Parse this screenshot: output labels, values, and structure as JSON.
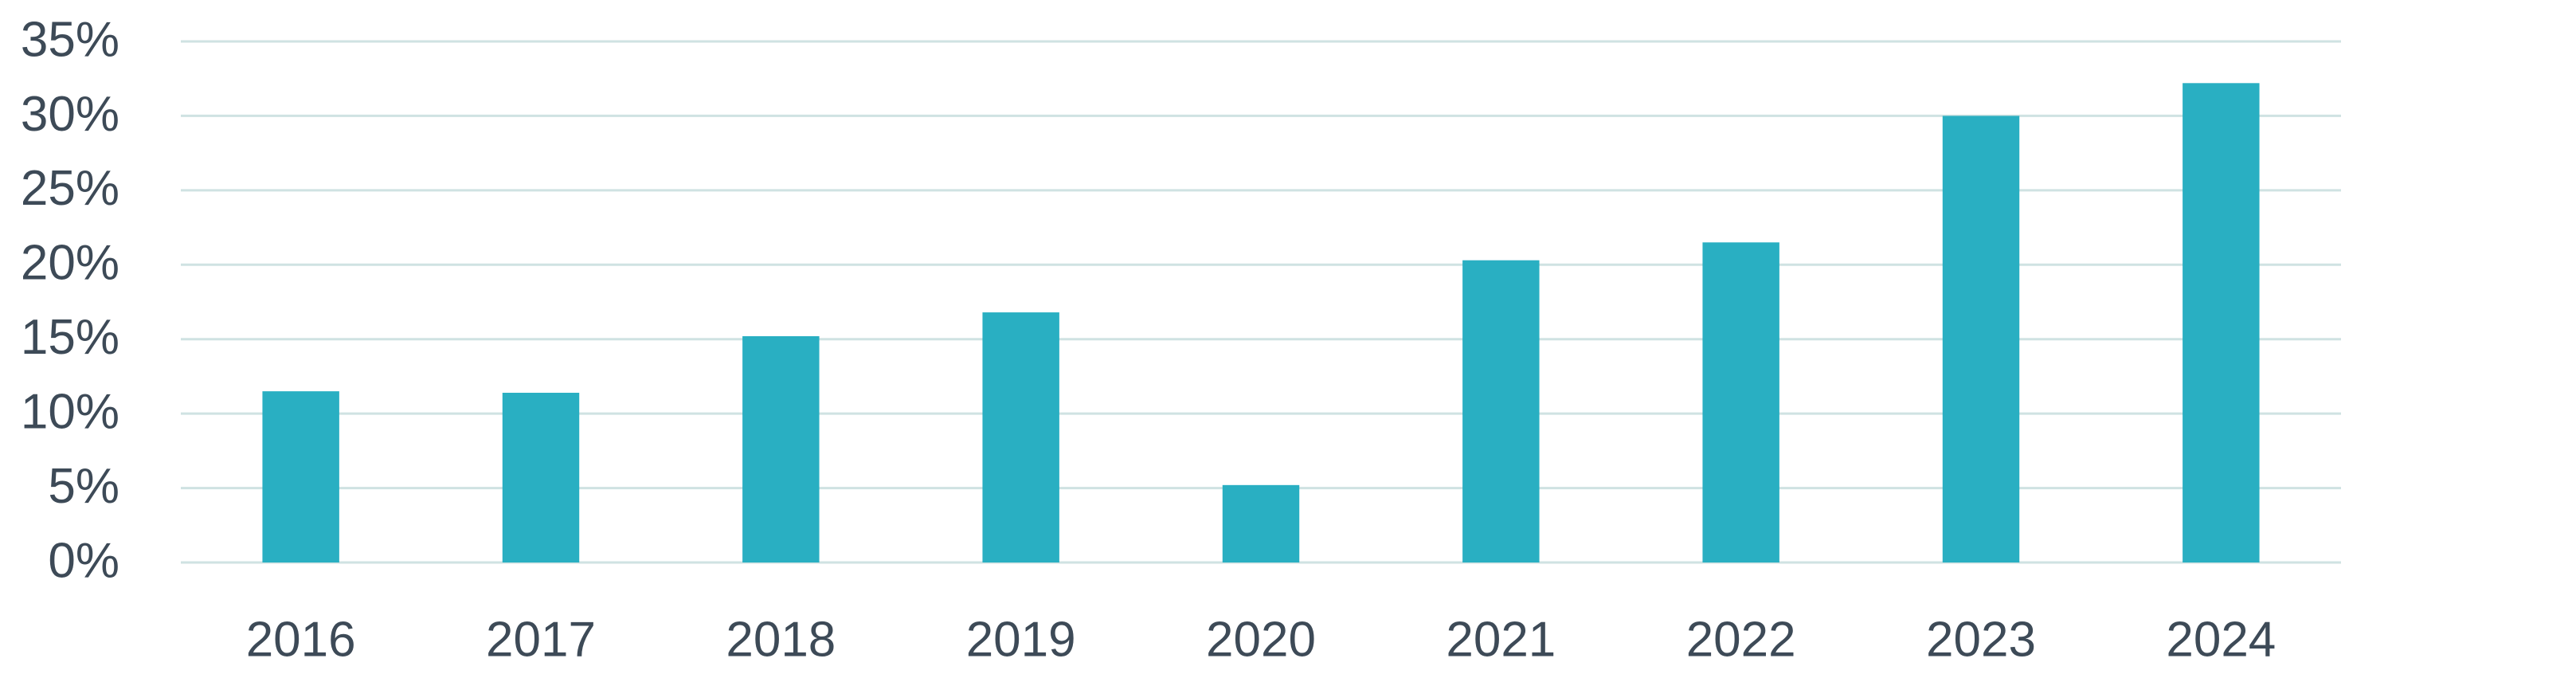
{
  "chart_data": {
    "type": "bar",
    "categories": [
      "2016",
      "2017",
      "2018",
      "2019",
      "2020",
      "2021",
      "2022",
      "2023",
      "2024"
    ],
    "values": [
      11.5,
      11.4,
      15.2,
      16.8,
      5.2,
      20.3,
      21.5,
      30.0,
      32.2
    ],
    "color": "#29afc2",
    "ylim": [
      0,
      35
    ],
    "yticks": [
      {
        "value": 0,
        "label": "0%"
      },
      {
        "value": 5,
        "label": "5%"
      },
      {
        "value": 10,
        "label": "10%"
      },
      {
        "value": 15,
        "label": "15%"
      },
      {
        "value": 20,
        "label": "20%"
      },
      {
        "value": 25,
        "label": "25%"
      },
      {
        "value": 30,
        "label": "30%"
      },
      {
        "value": 35,
        "label": "35%"
      }
    ],
    "grid": true
  }
}
